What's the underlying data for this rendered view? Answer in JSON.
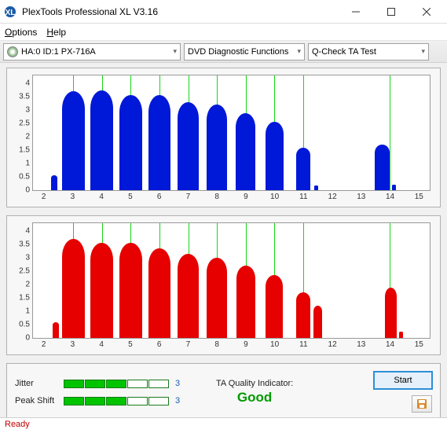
{
  "window": {
    "title": "PlexTools Professional XL V3.16"
  },
  "menu": {
    "options": "Options",
    "help": "Help"
  },
  "toolbar": {
    "drive": "HA:0 ID:1  PX-716A",
    "func": "DVD Diagnostic Functions",
    "test": "Q-Check TA Test"
  },
  "chart": {
    "y_ticks": [
      0,
      0.5,
      1,
      1.5,
      2,
      2.5,
      3,
      3.5,
      4
    ],
    "y_max": 4.3,
    "x_ticks": [
      2,
      3,
      4,
      5,
      6,
      7,
      8,
      9,
      10,
      11,
      12,
      13,
      14,
      15
    ],
    "x_min": 1.6,
    "x_max": 15.4,
    "grid_x": [
      3,
      4,
      5,
      6,
      7,
      8,
      9,
      10,
      11,
      14
    ],
    "plot_bg": "#ffffff",
    "grid_color": "#00d000",
    "top": {
      "color": "#0018d8",
      "peaks": [
        {
          "x": 2.35,
          "h": 0.55,
          "w": 0.22
        },
        {
          "x": 3,
          "h": 3.7,
          "w": 0.8
        },
        {
          "x": 4,
          "h": 3.75,
          "w": 0.8
        },
        {
          "x": 5,
          "h": 3.55,
          "w": 0.78
        },
        {
          "x": 6,
          "h": 3.55,
          "w": 0.76
        },
        {
          "x": 7,
          "h": 3.3,
          "w": 0.74
        },
        {
          "x": 8,
          "h": 3.2,
          "w": 0.7
        },
        {
          "x": 9,
          "h": 2.9,
          "w": 0.68
        },
        {
          "x": 10,
          "h": 2.55,
          "w": 0.62
        },
        {
          "x": 11,
          "h": 1.6,
          "w": 0.5
        },
        {
          "x": 11.45,
          "h": 0.18,
          "w": 0.15
        },
        {
          "x": 13.75,
          "h": 1.7,
          "w": 0.5
        },
        {
          "x": 14.15,
          "h": 0.2,
          "w": 0.15
        }
      ]
    },
    "bottom": {
      "color": "#e60000",
      "peaks": [
        {
          "x": 2.4,
          "h": 0.6,
          "w": 0.22
        },
        {
          "x": 3,
          "h": 3.7,
          "w": 0.8
        },
        {
          "x": 4,
          "h": 3.55,
          "w": 0.8
        },
        {
          "x": 5,
          "h": 3.55,
          "w": 0.78
        },
        {
          "x": 6,
          "h": 3.35,
          "w": 0.76
        },
        {
          "x": 7,
          "h": 3.15,
          "w": 0.74
        },
        {
          "x": 8,
          "h": 3.0,
          "w": 0.7
        },
        {
          "x": 9,
          "h": 2.7,
          "w": 0.66
        },
        {
          "x": 10,
          "h": 2.35,
          "w": 0.6
        },
        {
          "x": 11,
          "h": 1.7,
          "w": 0.5
        },
        {
          "x": 11.5,
          "h": 1.2,
          "w": 0.3
        },
        {
          "x": 14.05,
          "h": 1.9,
          "w": 0.42
        },
        {
          "x": 14.4,
          "h": 0.25,
          "w": 0.15
        }
      ]
    }
  },
  "metrics": {
    "jitter": {
      "label": "Jitter",
      "fill": 3,
      "total": 5,
      "value": "3"
    },
    "peak_shift": {
      "label": "Peak Shift",
      "fill": 3,
      "total": 5,
      "value": "3"
    }
  },
  "ta": {
    "label": "TA Quality Indicator:",
    "value": "Good",
    "value_color": "#009a00"
  },
  "buttons": {
    "start": "Start"
  },
  "status": {
    "text": "Ready",
    "color": "#c00000"
  }
}
